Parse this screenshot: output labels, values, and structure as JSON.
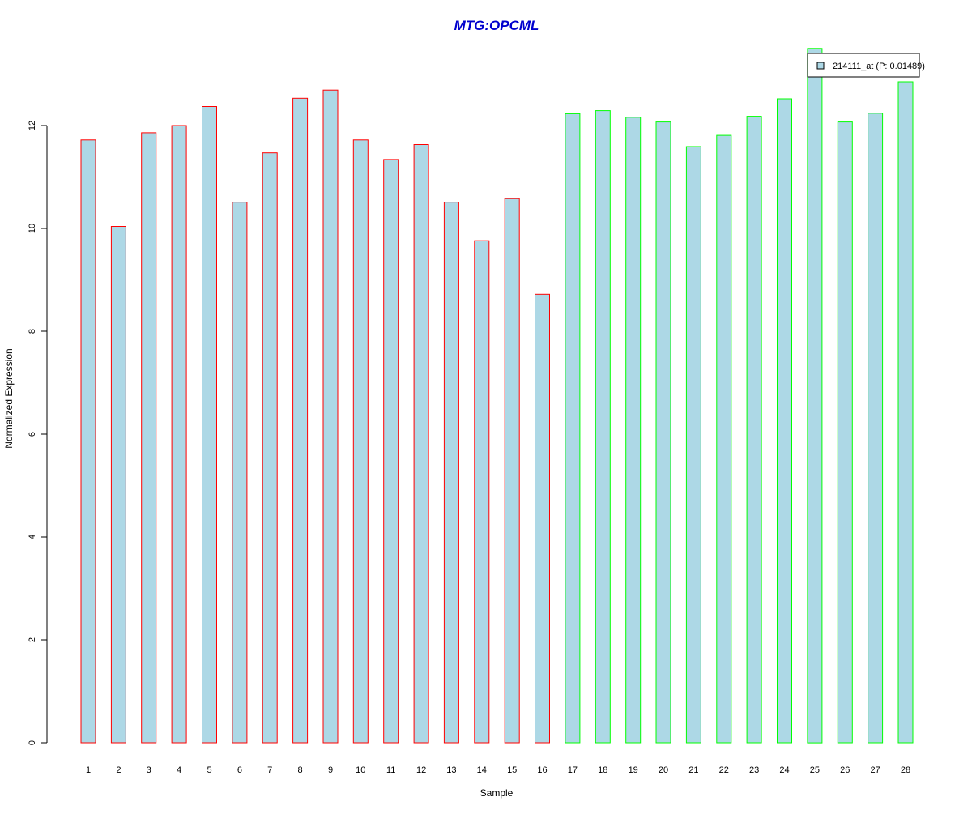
{
  "chart_data": {
    "type": "bar",
    "title": "MTG:OPCML",
    "xlabel": "Sample",
    "ylabel": "Normalized Expression",
    "categories": [
      "1",
      "2",
      "3",
      "4",
      "5",
      "6",
      "7",
      "8",
      "9",
      "10",
      "11",
      "12",
      "13",
      "14",
      "15",
      "16",
      "17",
      "18",
      "19",
      "20",
      "21",
      "22",
      "23",
      "24",
      "25",
      "26",
      "27",
      "28"
    ],
    "series": [
      {
        "name": "214111_at (P: 0.01489)",
        "values": [
          11.72,
          10.04,
          11.86,
          12.0,
          12.37,
          10.51,
          11.47,
          12.53,
          12.69,
          11.72,
          11.34,
          11.63,
          10.51,
          9.76,
          10.58,
          8.72,
          12.23,
          12.29,
          12.16,
          12.07,
          11.59,
          11.81,
          12.18,
          12.52,
          13.5,
          12.07,
          12.24,
          12.85
        ]
      }
    ],
    "groups": [
      {
        "samples": "1-16",
        "border_color": "#ff0000"
      },
      {
        "samples": "17-28",
        "border_color": "#00ff00"
      }
    ],
    "bar_fill": "#add8e6",
    "title_color": "#0000cd",
    "y_ticks": [
      0,
      2,
      4,
      6,
      8,
      10,
      12
    ],
    "ylim": [
      0,
      13.5
    ],
    "grid": false,
    "legend_position": "top-right"
  }
}
